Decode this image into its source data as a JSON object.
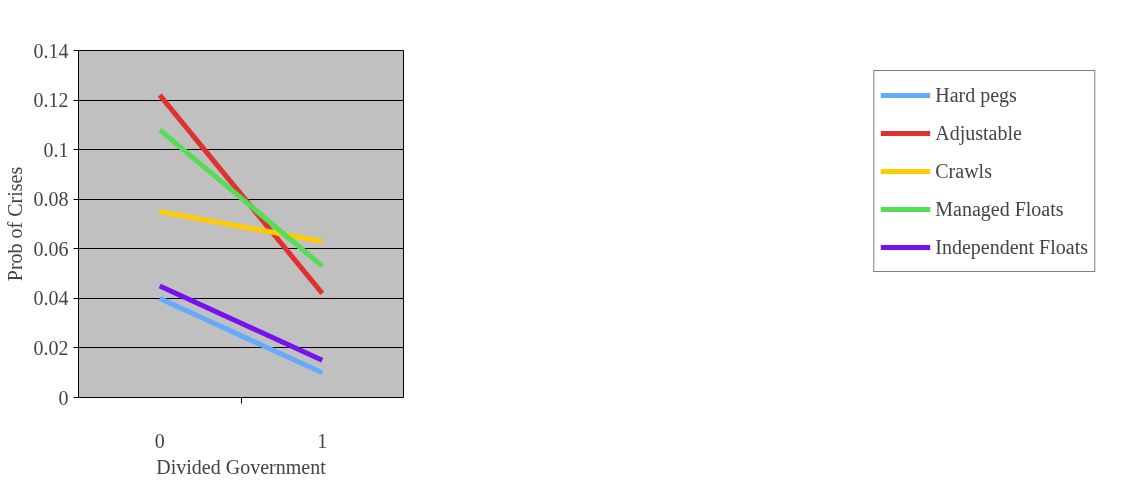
{
  "chart_data": {
    "type": "line",
    "xlabel": "Divided Government",
    "ylabel": "Prob of Crises",
    "categories": [
      "0",
      "1"
    ],
    "series": [
      {
        "name": "Hard pegs",
        "color": "#66aaff",
        "values": [
          0.04,
          0.01
        ]
      },
      {
        "name": "Adjustable",
        "color": "#e03030",
        "values": [
          0.122,
          0.042
        ]
      },
      {
        "name": "Crawls",
        "color": "#ffcc00",
        "values": [
          0.075,
          0.063
        ]
      },
      {
        "name": "Managed Floats",
        "color": "#55dd55",
        "values": [
          0.108,
          0.053
        ]
      },
      {
        "name": "Independent Floats",
        "color": "#7711ee",
        "values": [
          0.045,
          0.015
        ]
      }
    ],
    "ylim": [
      0,
      0.14
    ],
    "yticks": [
      0,
      0.02,
      0.04,
      0.06,
      0.08,
      0.1,
      0.12,
      0.14
    ],
    "grid": "y",
    "legend": "right",
    "marker": "none",
    "line_style": "solid"
  }
}
